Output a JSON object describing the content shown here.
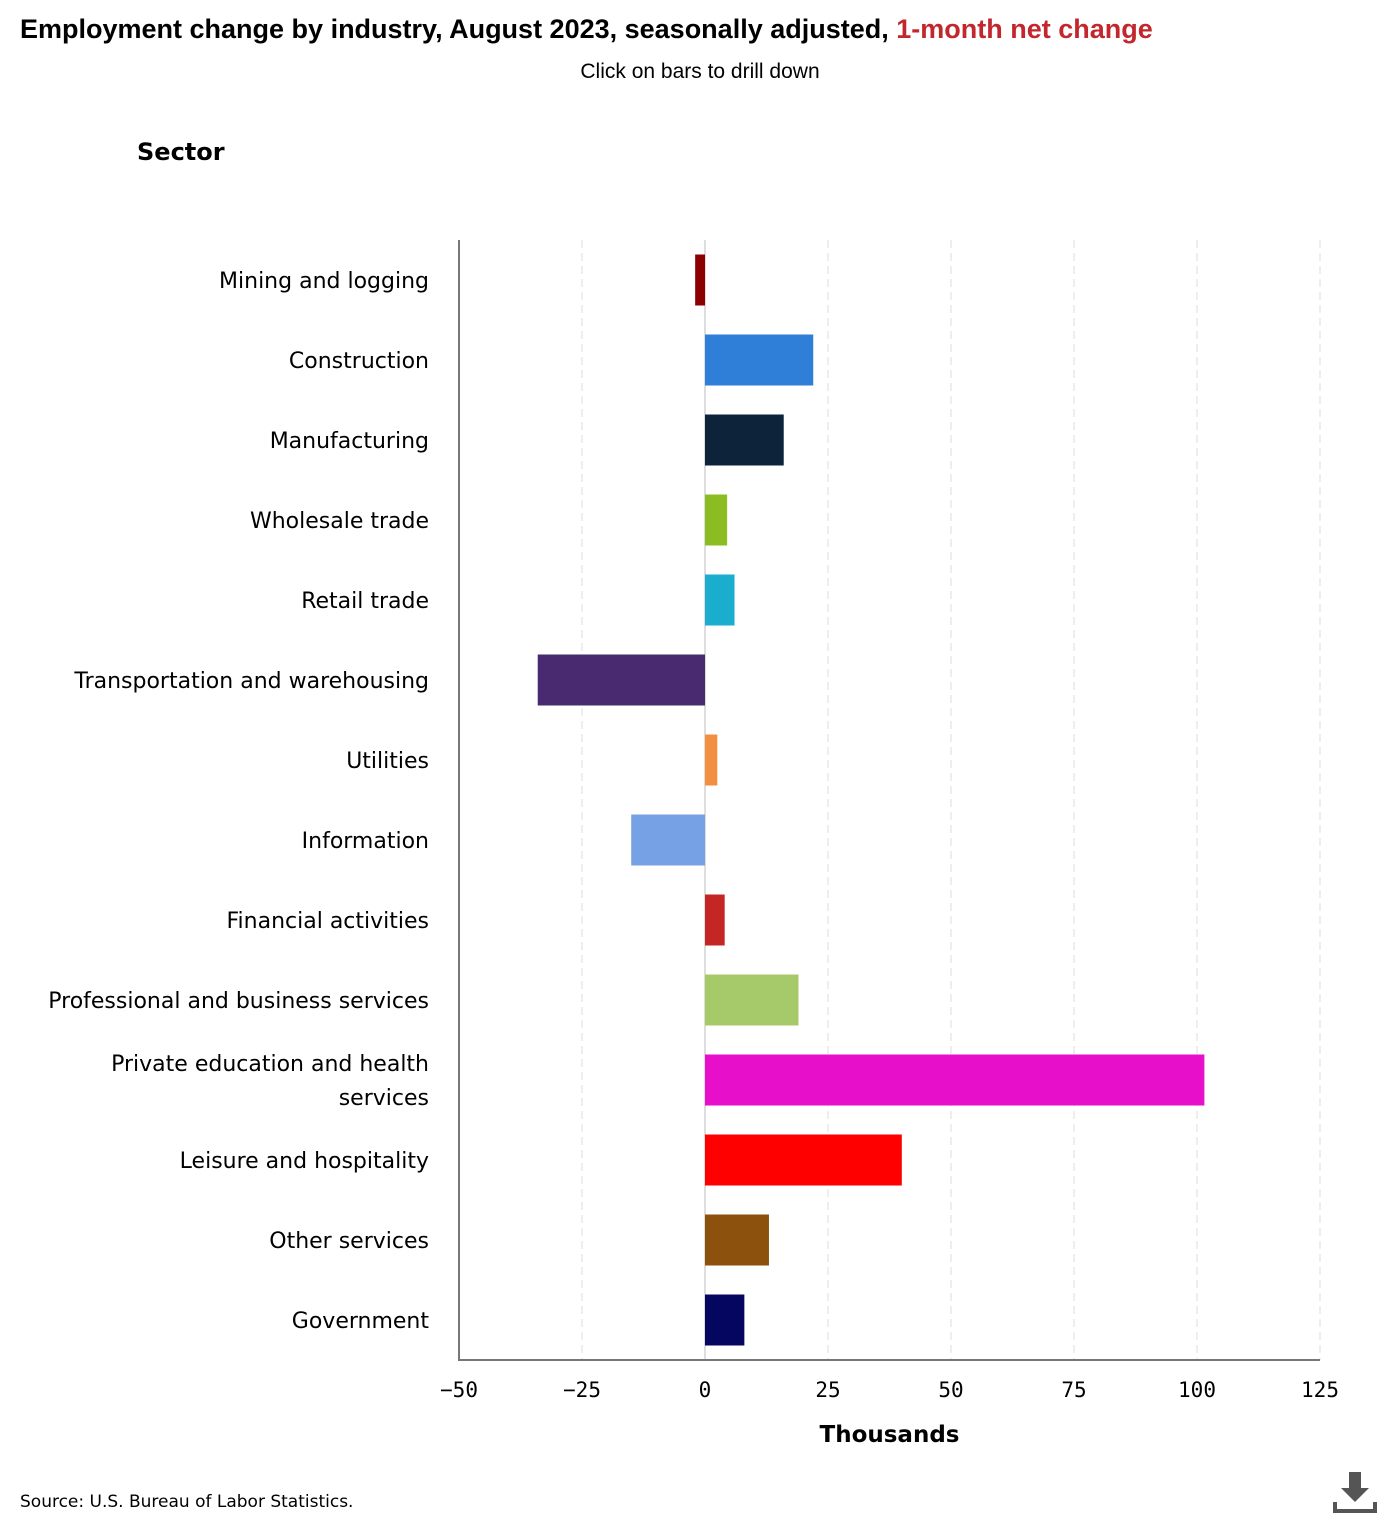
{
  "header": {
    "title_main": "Employment change by industry, August 2023, seasonally adjusted, ",
    "title_accent": "1-month net change",
    "subtitle": "Click on bars to drill down"
  },
  "footer": {
    "source": "Source: U.S. Bureau of Labor Statistics."
  },
  "icons": {
    "download": "download-icon"
  },
  "chart_data": {
    "type": "bar",
    "orientation": "horizontal",
    "category_axis_title": "Sector",
    "xlabel": "Thousands",
    "xlim": [
      -50,
      125
    ],
    "xticks": [
      -50,
      -25,
      0,
      25,
      50,
      75,
      100,
      125
    ],
    "xtick_labels": [
      "−50",
      "−25",
      "0",
      "25",
      "50",
      "75",
      "100",
      "125"
    ],
    "grid": "vertical dashed",
    "categories": [
      "Mining and logging",
      "Construction",
      "Manufacturing",
      "Wholesale trade",
      "Retail trade",
      "Transportation and warehousing",
      "Utilities",
      "Information",
      "Financial activities",
      "Professional and business services",
      "Private education and health services",
      "Leisure and hospitality",
      "Other services",
      "Government"
    ],
    "values": [
      -2,
      22,
      16,
      4.5,
      6,
      -34,
      2.5,
      -15,
      4,
      19,
      101.5,
      40,
      13,
      8
    ],
    "colors": [
      "#8b0000",
      "#2f7ed8",
      "#0d233a",
      "#8bbc21",
      "#1aadce",
      "#492970",
      "#f28f43",
      "#77a1e5",
      "#c42525",
      "#a6c96a",
      "#e80fcb",
      "#ff0000",
      "#8c520d",
      "#050660"
    ]
  }
}
